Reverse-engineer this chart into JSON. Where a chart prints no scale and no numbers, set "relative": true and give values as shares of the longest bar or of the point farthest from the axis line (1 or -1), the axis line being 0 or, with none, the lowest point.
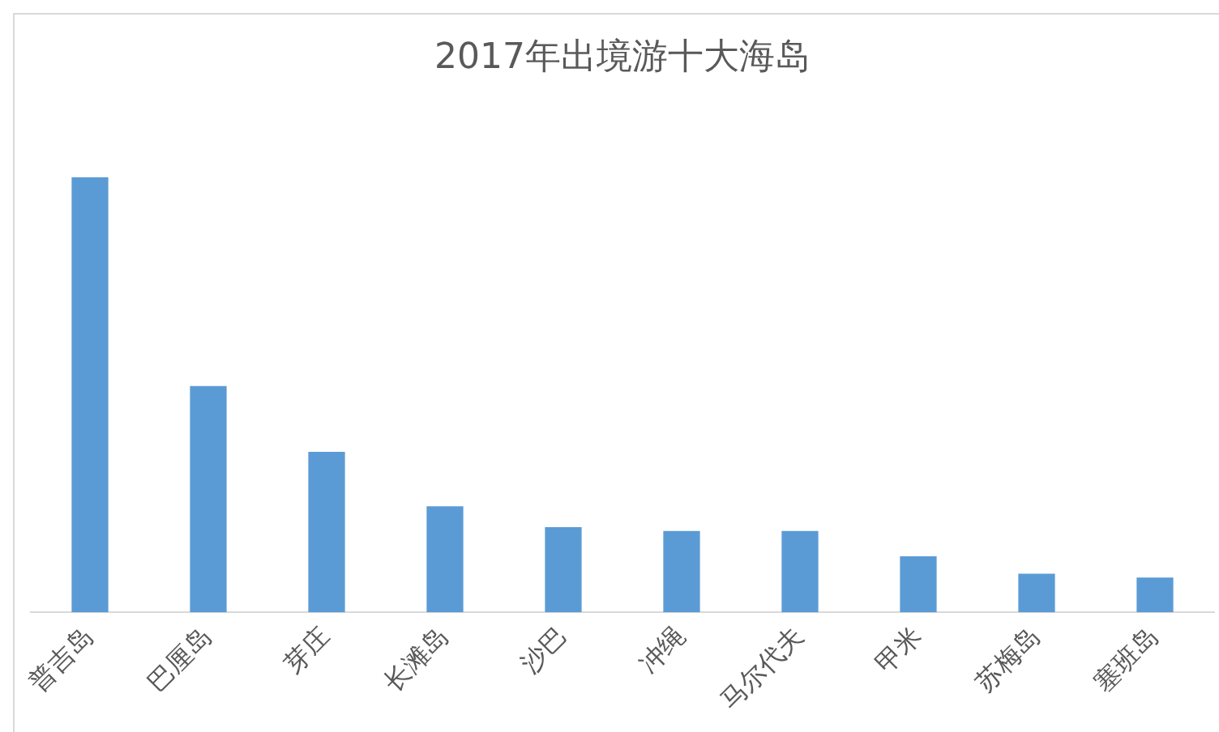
{
  "chart_data": {
    "type": "bar",
    "title": "2017年出境游十大海岛",
    "relative": true,
    "categories": [
      "普吉岛",
      "巴厘岛",
      "芽庄",
      "长滩岛",
      "沙巴",
      "冲绳",
      "马尔代夫",
      "甲米",
      "苏梅岛",
      "塞班岛"
    ],
    "values": [
      1,
      0.52,
      0.369,
      0.244,
      0.196,
      0.187,
      0.187,
      0.129,
      0.089,
      0.08
    ],
    "color": "#5b9bd5",
    "grid": false,
    "legend": false
  }
}
